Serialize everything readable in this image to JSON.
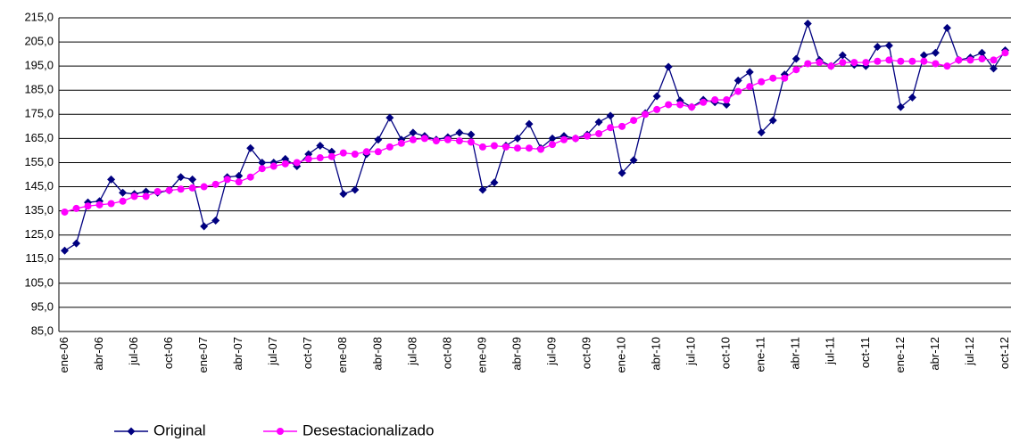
{
  "chart_data": {
    "type": "line",
    "categories": [
      "ene-06",
      null,
      null,
      "abr-06",
      null,
      null,
      "jul-06",
      null,
      null,
      "oct-06",
      null,
      null,
      "ene-07",
      null,
      null,
      "abr-07",
      null,
      null,
      "jul-07",
      null,
      null,
      "oct-07",
      null,
      null,
      "ene-08",
      null,
      null,
      "abr-08",
      null,
      null,
      "jul-08",
      null,
      null,
      "oct-08",
      null,
      null,
      "ene-09",
      null,
      null,
      "abr-09",
      null,
      null,
      "jul-09",
      null,
      null,
      "oct-09",
      null,
      null,
      "ene-10",
      null,
      null,
      "abr-10",
      null,
      null,
      "jul-10",
      null,
      null,
      "oct-10",
      null,
      null,
      "ene-11",
      null,
      null,
      "abr-11",
      null,
      null,
      "jul-11",
      null,
      null,
      "oct-11",
      null,
      null,
      "ene-12",
      null,
      null,
      "abr-12",
      null,
      null,
      "jul-12",
      null,
      null,
      "oct-12"
    ],
    "series": [
      {
        "name": "Original",
        "color": "#000080",
        "marker": "diamond",
        "values": [
          118.5,
          121.5,
          138.5,
          139,
          148,
          142.5,
          142,
          143,
          142.5,
          143.5,
          149,
          148,
          128.6,
          131,
          149,
          149.5,
          161,
          155,
          155,
          156.5,
          153.5,
          158.5,
          162,
          159.5,
          142,
          143.7,
          158.5,
          164.5,
          173.6,
          164.5,
          167.4,
          166,
          164.5,
          165.5,
          167.4,
          166.6,
          143.7,
          146.7,
          162,
          165,
          171,
          161,
          165,
          166,
          165,
          166.6,
          171.8,
          174.4,
          150.7,
          156,
          175.5,
          182.5,
          194.7,
          180.7,
          178,
          181,
          180,
          179,
          189,
          192.5,
          167.5,
          172.5,
          191.5,
          198,
          212.6,
          197.5,
          195,
          199.5,
          195.5,
          195,
          203,
          203.5,
          178,
          182,
          199.5,
          200.5,
          210.8,
          197.5,
          198.5,
          200.5,
          194,
          201.5
        ]
      },
      {
        "name": "Desestacionalizado",
        "color": "#ff00ff",
        "marker": "circle",
        "values": [
          134.5,
          136,
          137,
          137.5,
          138,
          139,
          141,
          141,
          143,
          143.5,
          144,
          144.5,
          145,
          146,
          148,
          147,
          149,
          152.5,
          153.5,
          154.5,
          155,
          156.5,
          157,
          157.5,
          159,
          158.5,
          159.5,
          159.5,
          161.5,
          163,
          164.5,
          165,
          164,
          164.5,
          164,
          163.5,
          161.5,
          162,
          161.5,
          161,
          161,
          160.5,
          162.5,
          164.5,
          165,
          166,
          167,
          169.5,
          170,
          172.5,
          175,
          177,
          179,
          179,
          178,
          180,
          181,
          181,
          184.5,
          186.5,
          188.5,
          190,
          190,
          193.5,
          196,
          196.5,
          195,
          196.5,
          196.5,
          196.5,
          197,
          197.5,
          197,
          197,
          197,
          196,
          195,
          197.5,
          197.5,
          198,
          197.5,
          200.5
        ]
      }
    ],
    "ylim": [
      85,
      215
    ],
    "yticks": [
      {
        "value": 85,
        "label": "85,0"
      },
      {
        "value": 95,
        "label": "95,0"
      },
      {
        "value": 105,
        "label": "105,0"
      },
      {
        "value": 115,
        "label": "115,0"
      },
      {
        "value": 125,
        "label": "125,0"
      },
      {
        "value": 135,
        "label": "135,0"
      },
      {
        "value": 145,
        "label": "145,0"
      },
      {
        "value": 155,
        "label": "155,0"
      },
      {
        "value": 165,
        "label": "165,0"
      },
      {
        "value": 175,
        "label": "175,0"
      },
      {
        "value": 185,
        "label": "185,0"
      },
      {
        "value": 195,
        "label": "195,0"
      },
      {
        "value": 205,
        "label": "205,0"
      },
      {
        "value": 215,
        "label": "215,0"
      }
    ],
    "grid": true,
    "legend": "bottom-left"
  }
}
